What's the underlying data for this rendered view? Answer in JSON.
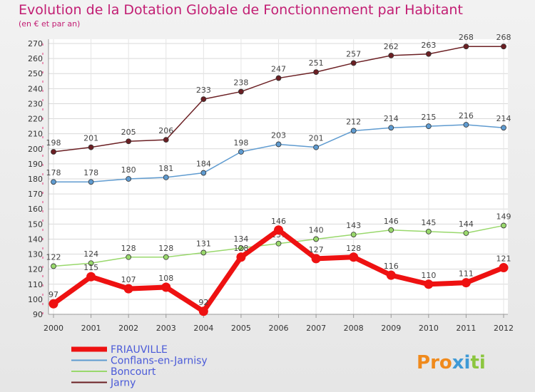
{
  "chart_data": {
    "type": "line",
    "title": "Evolution de la Dotation Globale de Fonctionnement par Habitant",
    "subtitle": "(en € et par an)",
    "x": [
      "2000",
      "2001",
      "2002",
      "2003",
      "2004",
      "2005",
      "2006",
      "2007",
      "2008",
      "2009",
      "2010",
      "2011",
      "2012"
    ],
    "ylim": [
      90,
      270
    ],
    "yticks": [
      90,
      100,
      110,
      120,
      130,
      140,
      150,
      160,
      170,
      180,
      190,
      200,
      210,
      220,
      230,
      240,
      250,
      260,
      270
    ],
    "grid": true,
    "legend_position": "bottom-left",
    "series": [
      {
        "name": "Jarny",
        "color": "#6b1f23",
        "values": [
          198,
          201,
          205,
          206,
          233,
          238,
          247,
          251,
          257,
          262,
          263,
          268,
          268
        ]
      },
      {
        "name": "Conflans-en-Jarnisy",
        "color": "#5f9bd0",
        "values": [
          178,
          178,
          180,
          181,
          184,
          198,
          203,
          201,
          212,
          214,
          215,
          216,
          214
        ]
      },
      {
        "name": "Boncourt",
        "color": "#99d86c",
        "values": [
          122,
          124,
          128,
          128,
          131,
          134,
          137,
          140,
          143,
          146,
          145,
          144,
          149
        ]
      },
      {
        "name": "FRIAUVILLE",
        "color": "#ee1111",
        "values": [
          97,
          115,
          107,
          108,
          92,
          128,
          146,
          127,
          128,
          116,
          110,
          111,
          121
        ]
      }
    ],
    "legend_order": [
      "FRIAUVILLE",
      "Conflans-en-Jarnisy",
      "Boncourt",
      "Jarny"
    ]
  },
  "logo": {
    "text": "Proxiti",
    "letters": [
      "P",
      "r",
      "o",
      "x",
      "i",
      "t",
      "i"
    ],
    "colors": [
      "#f08a1c",
      "#f08a1c",
      "#f08a1c",
      "#3f9ad6",
      "#3f9ad6",
      "#8cc63f",
      "#8cc63f"
    ]
  }
}
